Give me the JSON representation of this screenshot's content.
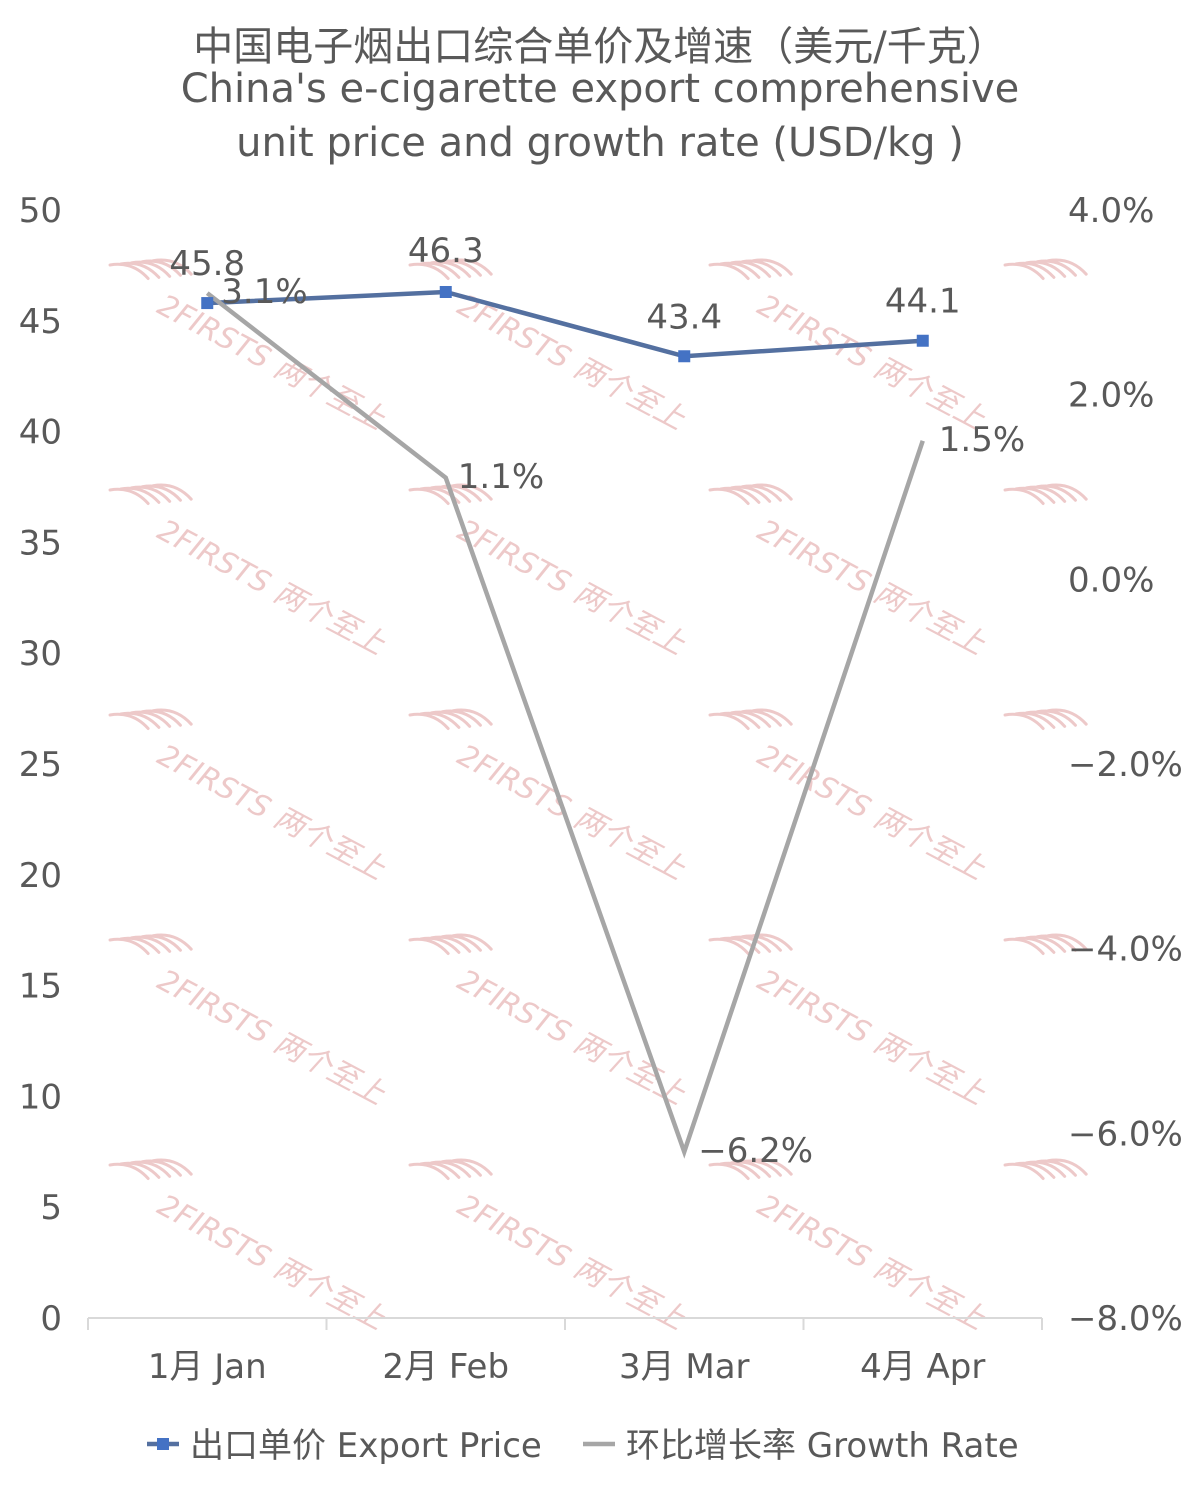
{
  "chart_data": {
    "type": "line",
    "title": "中国电子烟出口综合单价及增速（美元/千克）",
    "subtitle_lines": [
      "China's e-cigarette export comprehensive",
      "unit price and growth rate (USD/kg )"
    ],
    "categories": [
      "1月 Jan",
      "2月 Feb",
      "3月 Mar",
      "4月 Apr"
    ],
    "y_left": {
      "min": 0,
      "max": 50,
      "step": 5,
      "ticks": [
        "0",
        "5",
        "10",
        "15",
        "20",
        "25",
        "30",
        "35",
        "40",
        "45",
        "50"
      ]
    },
    "y_right": {
      "min": -8,
      "max": 4,
      "step": 2,
      "ticks": [
        "−8.0%",
        "−6.0%",
        "−4.0%",
        "−2.0%",
        "0.0%",
        "2.0%",
        "4.0%"
      ]
    },
    "series": [
      {
        "name": "出口单价 Export Price",
        "axis": "left",
        "color": "#5470a0",
        "marker": "square",
        "values": [
          45.8,
          46.3,
          43.4,
          44.1
        ],
        "labels": [
          "45.8",
          "46.3",
          "43.4",
          "44.1"
        ]
      },
      {
        "name": "环比增长率 Growth Rate",
        "axis": "right",
        "color": "#a6a6a6",
        "marker": "none",
        "values": [
          3.1,
          1.1,
          -6.2,
          1.5
        ],
        "labels": [
          "3.1%",
          "1.1%",
          "−6.2%",
          "1.5%"
        ]
      }
    ],
    "legend_position": "bottom",
    "grid": false,
    "watermark": "2FIRSTS 两个至上"
  }
}
